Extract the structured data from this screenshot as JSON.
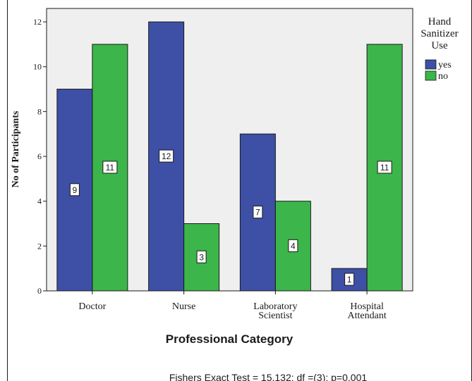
{
  "chart_data": {
    "type": "bar",
    "categories": [
      [
        "Doctor"
      ],
      [
        "Nurse"
      ],
      [
        "Laboratory",
        "Scientist"
      ],
      [
        "Hospital",
        "Attendant"
      ]
    ],
    "series": [
      {
        "name": "yes",
        "values": [
          9,
          12,
          7,
          1
        ],
        "color": "#3d50a5"
      },
      {
        "name": "no",
        "values": [
          11,
          3,
          4,
          11
        ],
        "color": "#3cb54a"
      }
    ],
    "xlabel": "Professional Category",
    "ylabel": "No of Participants",
    "ylim": [
      0,
      12.6
    ],
    "yticks": [
      0,
      2,
      4,
      6,
      8,
      10,
      12
    ],
    "legend": {
      "title": [
        "Hand",
        "Sanitizer",
        "Use"
      ],
      "position": "right"
    },
    "annotation": "Fishers Exact Test = 15.132; df =(3); p=0.001",
    "plot_background": "#efefef",
    "grid": false
  }
}
